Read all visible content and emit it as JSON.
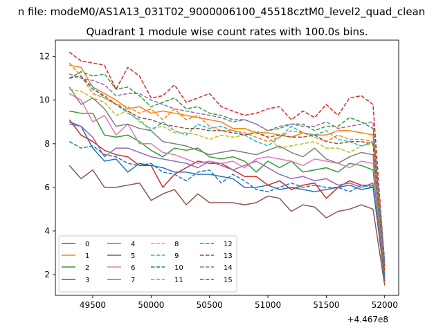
{
  "chart_data": {
    "type": "line",
    "suptitle": "n file: modeM0/AS1A13_031T02_9000006100_45518cztM0_level2_quad_clean",
    "title": "Quadrant 1 module wise count rates with 100.0s bins.",
    "xlabel": "",
    "ylabel": "",
    "x_offset_label": "+4.467e8",
    "xlim": [
      49180,
      52120
    ],
    "ylim": [
      1.05,
      12.75
    ],
    "x_ticks": [
      49500,
      50000,
      50500,
      51000,
      51500,
      52000
    ],
    "x_tick_labels": [
      "49500",
      "50000",
      "50500",
      "51000",
      "51500",
      "52000"
    ],
    "y_ticks": [
      2,
      4,
      6,
      8,
      10,
      12
    ],
    "y_tick_labels": [
      "2",
      "4",
      "6",
      "8",
      "10",
      "12"
    ],
    "grid": false,
    "legend_placement": "lower-left",
    "x": [
      49300,
      49400,
      49500,
      49600,
      49700,
      49800,
      49900,
      50000,
      50100,
      50200,
      50300,
      50400,
      50500,
      50600,
      50700,
      50800,
      50900,
      51000,
      51100,
      51200,
      51300,
      51400,
      51500,
      51600,
      51700,
      51800,
      51900,
      52000
    ],
    "series": [
      {
        "name": "0",
        "color": "#1f77b4",
        "dash": "solid",
        "values": [
          9.0,
          8.8,
          7.8,
          7.2,
          7.3,
          6.7,
          7.1,
          7.0,
          6.9,
          6.7,
          6.7,
          6.6,
          6.6,
          6.5,
          6.4,
          6.0,
          6.0,
          6.1,
          5.9,
          6.0,
          5.9,
          5.8,
          5.9,
          6.0,
          6.1,
          5.9,
          6.0,
          1.9
        ]
      },
      {
        "name": "1",
        "color": "#ff7f0e",
        "dash": "solid",
        "values": [
          11.6,
          11.5,
          10.6,
          10.3,
          10.0,
          9.6,
          9.7,
          9.4,
          9.5,
          9.4,
          9.3,
          9.2,
          9.1,
          9.0,
          8.7,
          8.7,
          8.5,
          8.5,
          8.4,
          8.3,
          8.5,
          8.4,
          8.4,
          8.6,
          8.6,
          8.5,
          8.4,
          2.3
        ]
      },
      {
        "name": "2",
        "color": "#2ca02c",
        "dash": "solid",
        "values": [
          9.5,
          9.4,
          9.4,
          8.4,
          8.3,
          8.4,
          8.1,
          7.7,
          7.4,
          7.8,
          7.7,
          7.8,
          7.4,
          7.3,
          7.4,
          7.2,
          6.7,
          7.2,
          6.9,
          7.2,
          6.7,
          6.8,
          6.9,
          6.7,
          7.1,
          7.0,
          6.8,
          1.8
        ]
      },
      {
        "name": "3",
        "color": "#d62728",
        "dash": "solid",
        "values": [
          9.1,
          8.4,
          8.1,
          7.7,
          7.5,
          7.4,
          7.0,
          7.0,
          6.0,
          6.6,
          6.9,
          7.2,
          7.1,
          7.1,
          6.8,
          6.5,
          6.5,
          6.1,
          6.3,
          5.9,
          6.1,
          6.2,
          5.5,
          6.0,
          6.3,
          6.1,
          6.1,
          1.7
        ]
      },
      {
        "name": "4",
        "color": "#9467bd",
        "dash": "solid",
        "values": [
          8.9,
          8.8,
          8.3,
          7.4,
          7.8,
          7.8,
          7.6,
          7.4,
          7.3,
          7.2,
          7.1,
          6.9,
          7.2,
          7.0,
          6.8,
          7.0,
          7.2,
          6.9,
          6.6,
          6.4,
          6.5,
          6.3,
          6.4,
          6.1,
          6.2,
          6.0,
          6.2,
          1.8
        ]
      },
      {
        "name": "5",
        "color": "#8c564b",
        "dash": "solid",
        "values": [
          7.0,
          6.4,
          6.8,
          6.0,
          6.0,
          6.1,
          6.2,
          5.4,
          5.7,
          5.9,
          5.2,
          5.7,
          5.3,
          5.3,
          5.3,
          5.2,
          5.3,
          5.6,
          5.5,
          4.9,
          5.2,
          5.1,
          4.6,
          4.9,
          5.0,
          5.2,
          5.0,
          1.5
        ]
      },
      {
        "name": "6",
        "color": "#e377c2",
        "dash": "solid",
        "values": [
          10.3,
          10.0,
          9.0,
          9.3,
          8.4,
          8.9,
          8.0,
          8.0,
          7.6,
          7.5,
          7.3,
          7.1,
          7.2,
          7.1,
          7.2,
          6.9,
          7.3,
          7.4,
          7.3,
          7.2,
          7.0,
          7.3,
          7.2,
          7.1,
          6.9,
          7.2,
          7.1,
          2.0
        ]
      },
      {
        "name": "7",
        "color": "#7f7f7f",
        "dash": "solid",
        "values": [
          10.6,
          9.8,
          10.1,
          9.6,
          8.8,
          8.9,
          8.7,
          8.6,
          8.1,
          8.0,
          7.9,
          7.7,
          7.5,
          7.6,
          7.7,
          7.6,
          7.5,
          7.7,
          7.9,
          7.6,
          7.4,
          7.8,
          7.3,
          7.1,
          7.4,
          7.6,
          7.5,
          2.0
        ]
      },
      {
        "name": "8",
        "color": "#bcbd22",
        "dash": "dashed",
        "values": [
          10.5,
          10.4,
          10.1,
          9.9,
          9.3,
          9.5,
          9.0,
          8.7,
          8.8,
          8.5,
          8.5,
          8.4,
          8.2,
          8.4,
          8.3,
          8.4,
          8.6,
          8.3,
          7.8,
          7.9,
          8.0,
          8.1,
          7.8,
          7.8,
          7.6,
          7.9,
          8.0,
          2.1
        ]
      },
      {
        "name": "9",
        "color": "#17becf",
        "dash": "dashed",
        "values": [
          11.0,
          11.1,
          10.6,
          10.1,
          9.8,
          9.4,
          9.1,
          8.6,
          9.0,
          8.6,
          8.4,
          8.9,
          8.7,
          8.8,
          8.6,
          8.4,
          8.1,
          7.9,
          8.3,
          8.8,
          8.5,
          8.4,
          8.6,
          8.2,
          8.1,
          7.9,
          8.1,
          2.2
        ]
      },
      {
        "name": "10",
        "color": "#1f77b4",
        "dash": "dashed",
        "values": [
          8.1,
          7.8,
          7.9,
          7.5,
          7.4,
          7.1,
          7.0,
          7.1,
          6.7,
          6.6,
          6.3,
          6.7,
          6.8,
          6.2,
          6.6,
          6.3,
          5.9,
          5.8,
          6.0,
          6.2,
          6.0,
          6.1,
          6.0,
          6.0,
          5.8,
          6.1,
          6.0,
          1.9
        ]
      },
      {
        "name": "11",
        "color": "#ff7f0e",
        "dash": "dashed",
        "values": [
          11.7,
          11.1,
          10.3,
          10.1,
          9.8,
          9.7,
          9.4,
          9.6,
          9.1,
          9.6,
          9.1,
          9.3,
          8.8,
          8.6,
          8.6,
          8.5,
          8.3,
          8.1,
          8.3,
          8.6,
          8.5,
          8.3,
          8.1,
          8.4,
          8.2,
          8.2,
          8.1,
          2.3
        ]
      },
      {
        "name": "12",
        "color": "#2ca02c",
        "dash": "dashed",
        "values": [
          11.0,
          11.3,
          11.1,
          11.2,
          10.5,
          10.6,
          10.2,
          9.7,
          9.9,
          10.1,
          9.6,
          9.7,
          9.4,
          9.3,
          9.1,
          9.1,
          8.9,
          8.6,
          8.7,
          8.9,
          8.9,
          8.6,
          8.8,
          8.8,
          9.2,
          9.0,
          8.7,
          2.6
        ]
      },
      {
        "name": "13",
        "color": "#d62728",
        "dash": "dashed",
        "values": [
          12.2,
          11.8,
          11.7,
          11.6,
          10.5,
          11.5,
          11.1,
          10.1,
          10.2,
          10.7,
          9.9,
          10.1,
          10.3,
          9.7,
          9.5,
          9.3,
          9.4,
          9.6,
          9.7,
          9.1,
          9.5,
          9.2,
          9.8,
          9.3,
          10.1,
          10.2,
          9.8,
          2.4
        ]
      },
      {
        "name": "14",
        "color": "#9467bd",
        "dash": "dashed",
        "values": [
          11.2,
          11.0,
          10.9,
          10.7,
          10.2,
          10.3,
          10.3,
          10.0,
          9.8,
          9.6,
          9.5,
          9.4,
          9.3,
          9.2,
          9.0,
          9.1,
          8.9,
          8.6,
          8.8,
          8.9,
          8.8,
          8.8,
          9.0,
          8.7,
          8.8,
          8.9,
          9.0,
          2.5
        ]
      },
      {
        "name": "15",
        "color": "#8c564b",
        "dash": "dashed",
        "values": [
          11.0,
          11.1,
          10.5,
          10.2,
          9.8,
          9.5,
          9.2,
          9.1,
          8.9,
          8.8,
          8.7,
          8.7,
          8.6,
          8.6,
          8.5,
          8.4,
          8.5,
          8.3,
          8.4,
          8.3,
          8.3,
          8.4,
          8.1,
          8.0,
          8.1,
          8.1,
          8.0,
          2.2
        ]
      }
    ]
  }
}
